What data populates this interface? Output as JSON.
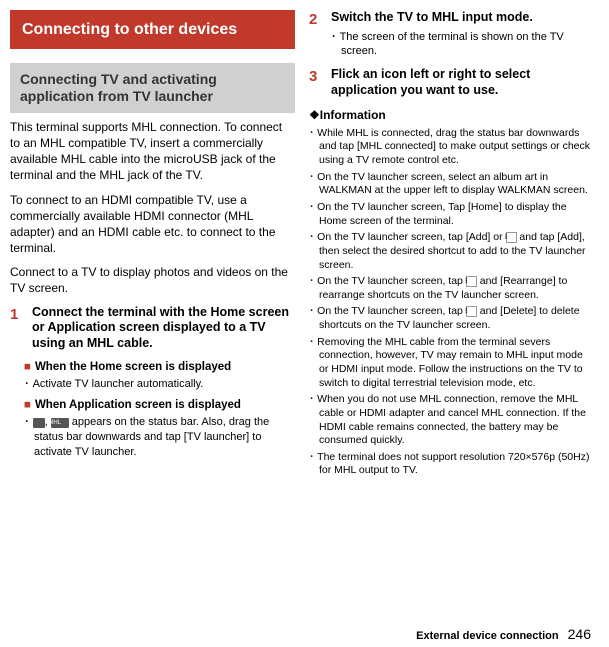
{
  "left": {
    "title": "Connecting to other devices",
    "subtitle": "Connecting TV and activating application from TV launcher",
    "p1": "This terminal supports MHL connection. To connect to an MHL compatible TV, insert a commercially available MHL cable into the microUSB jack of the terminal and the MHL jack of the TV.",
    "p2": "To connect to an HDMI compatible TV, use a commercially available HDMI connector (MHL adapter) and an HDMI cable etc. to connect to the terminal.",
    "p3": "Connect to a TV to display photos and videos on the TV screen.",
    "step1num": "1",
    "step1": "Connect the terminal with the Home screen or Application screen displayed to a TV using an MHL cable.",
    "h1": "When the Home screen is displayed",
    "b1": "Activate TV launcher automatically.",
    "h2": "When Application screen is displayed",
    "b2a": ", ",
    "b2b": " appears on the status bar. Also, drag the status bar downwards and tap [TV launcher] to activate TV launcher."
  },
  "right": {
    "step2num": "2",
    "step2": "Switch the TV to MHL input mode.",
    "step2sub": "The screen of the terminal is shown on the TV screen.",
    "step3num": "3",
    "step3": "Flick an icon left or right to select application you want to use.",
    "infoHead": "❖Information",
    "i1": "While MHL is connected, drag the status bar downwards and tap [MHL connected] to make output settings or check using a TV remote control etc.",
    "i2": "On the TV launcher screen, select an album art in WALKMAN at the upper left to display WALKMAN screen.",
    "i3": "On the TV launcher screen, Tap [Home] to display the Home screen of the terminal.",
    "i4a": "On the TV launcher screen, tap [Add] or ",
    "i4b": " and tap [Add], then select the desired shortcut to add to the TV launcher screen.",
    "i5a": "On the TV launcher screen, tap ",
    "i5b": " and [Rearrange] to rearrange shortcuts on the TV launcher screen.",
    "i6a": "On the TV launcher screen, tap ",
    "i6b": " and [Delete] to delete shortcuts on the TV launcher screen.",
    "i7": "Removing the MHL cable from the terminal severs connection, however, TV may remain to MHL input mode or HDMI input mode. Follow the instructions on the TV to switch to digital terrestrial television mode, etc.",
    "i8": "When you do not use MHL connection, remove the MHL cable or HDMI adapter and cancel MHL connection. If the HDMI cable remains connected, the battery may be consumed quickly.",
    "i9": "The terminal does not support resolution 720×576p (50Hz) for MHL output to TV."
  },
  "footer": {
    "section": "External device connection",
    "page": "246"
  }
}
